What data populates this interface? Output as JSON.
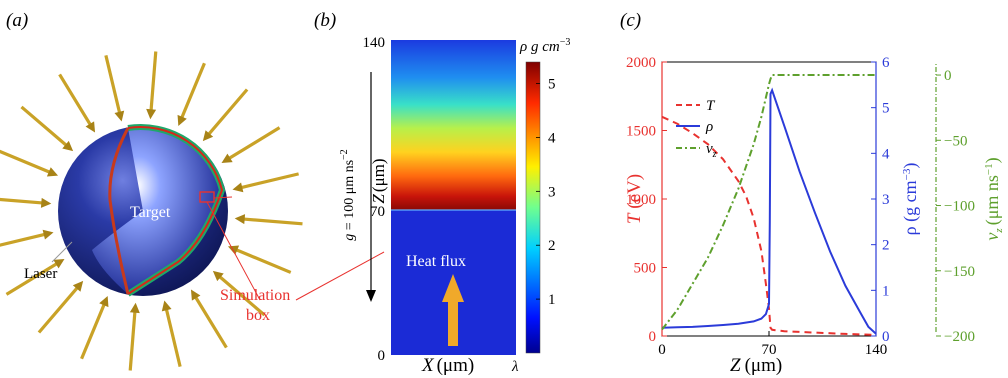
{
  "panel_a": {
    "label": "(a)",
    "target_label": "Target",
    "laser_label": "Laser",
    "sim_box_label_1": "Simulation",
    "sim_box_label_2": "box",
    "colors": {
      "laser": "#c9a227",
      "sphere": "#1c2a8a",
      "annotation": "#e8322f"
    }
  },
  "panel_b": {
    "label": "(b)",
    "y_tick_top": "140",
    "y_tick_mid": "70",
    "y_tick_bottom": "0",
    "x_tick_right": "λ",
    "xlabel_var": "X",
    "xlabel_unit": "(μm)",
    "ylabel_var": "Z",
    "ylabel_unit": "(μm)",
    "gravity_label": "g = 100 μm ns",
    "gravity_exp": "−2",
    "heat_flux_label": "Heat flux",
    "colorbar_title": "ρ g cm",
    "colorbar_exp": "−3",
    "colorbar_ticks": [
      "1",
      "2",
      "3",
      "4",
      "5"
    ]
  },
  "panel_c": {
    "label": "(c)",
    "legend": [
      "T",
      "ρ",
      "v"
    ],
    "legend_sub": "z",
    "left_axis_label": "T (eV)",
    "right_axis_label": "ρ (g cm",
    "right_axis_exp": "−3",
    "far_axis_label": "v",
    "far_axis_unit": "(μm ns",
    "far_axis_exp": "−1",
    "xlabel": "Z (μm)",
    "colors": {
      "T": "#e8322f",
      "rho": "#2b3bd9",
      "vz": "#5ea02d"
    }
  },
  "chart_data": {
    "type": "line",
    "xlabel": "Z (μm)",
    "xlim": [
      0,
      140
    ],
    "x_ticks": [
      0,
      70,
      140
    ],
    "axes": {
      "left": {
        "label": "T (eV)",
        "lim": [
          0,
          2000
        ],
        "ticks": [
          0,
          500,
          1000,
          1500,
          2000
        ]
      },
      "right": {
        "label": "ρ (g cm−3)",
        "lim": [
          0,
          6
        ],
        "ticks": [
          0,
          1,
          2,
          3,
          4,
          5,
          6
        ]
      },
      "far": {
        "label": "vz (μm ns−1)",
        "lim": [
          -200,
          10
        ],
        "ticks": [
          -200,
          -150,
          -100,
          -50,
          0
        ]
      }
    },
    "series": [
      {
        "name": "T",
        "axis": "left",
        "style": "dashed",
        "x": [
          0,
          10,
          20,
          30,
          40,
          50,
          55,
          60,
          65,
          68,
          70,
          71,
          72,
          80,
          100,
          120,
          140
        ],
        "y": [
          1600,
          1550,
          1480,
          1400,
          1290,
          1130,
          1020,
          860,
          620,
          380,
          200,
          60,
          45,
          35,
          25,
          15,
          8
        ]
      },
      {
        "name": "ρ",
        "axis": "right",
        "style": "solid",
        "x": [
          0,
          10,
          20,
          30,
          40,
          50,
          60,
          65,
          68,
          70,
          70.5,
          71,
          72,
          80,
          90,
          100,
          110,
          120,
          130,
          135,
          140
        ],
        "y": [
          0.18,
          0.19,
          0.2,
          0.22,
          0.24,
          0.27,
          0.32,
          0.38,
          0.48,
          0.7,
          2.5,
          5.3,
          5.38,
          4.6,
          3.6,
          2.7,
          1.85,
          1.1,
          0.5,
          0.2,
          0.05
        ]
      },
      {
        "name": "vz",
        "axis": "far",
        "style": "dashdot",
        "x": [
          0,
          10,
          20,
          30,
          40,
          50,
          60,
          65,
          70,
          71,
          72,
          80,
          100,
          120,
          140
        ],
        "y": [
          -195,
          -180,
          -160,
          -140,
          -115,
          -87,
          -53,
          -32,
          -7,
          -3,
          0,
          0,
          0,
          0,
          0
        ]
      }
    ]
  }
}
